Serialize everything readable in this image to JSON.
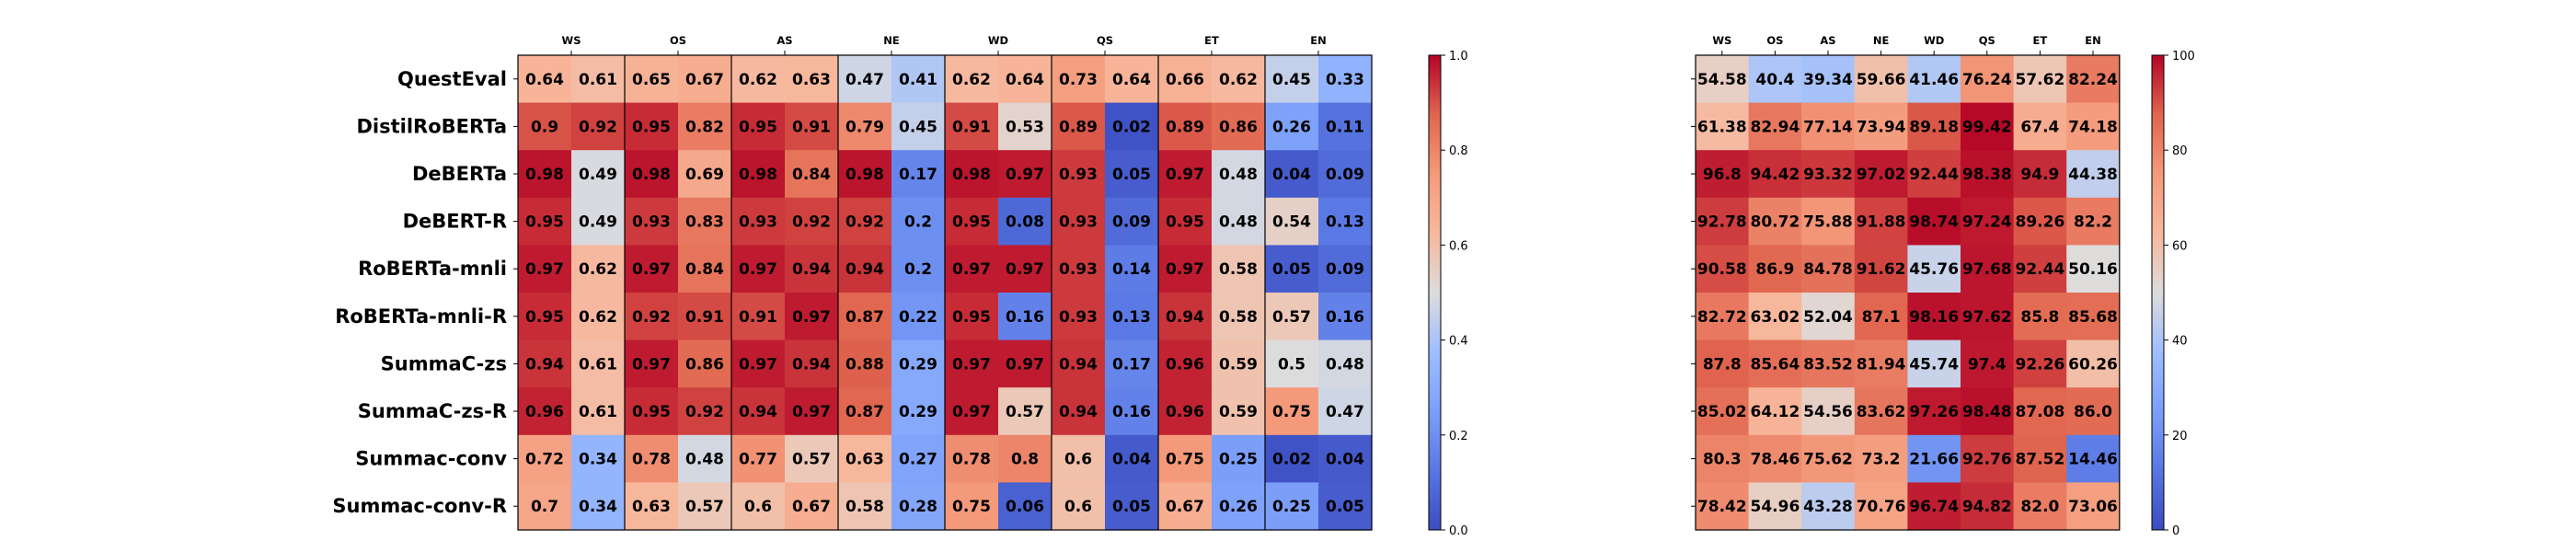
{
  "chart_data": [
    {
      "type": "heatmap",
      "colormap": "coolwarm",
      "vmin": 0.0,
      "vmax": 1.0,
      "colorbar_ticks": [
        "0.0",
        "0.2",
        "0.4",
        "0.6",
        "0.8",
        "1.0"
      ],
      "column_groups": [
        "WS",
        "OS",
        "AS",
        "NE",
        "WD",
        "QS",
        "ET",
        "EN"
      ],
      "rows": [
        "QuestEval",
        "DistilRoBERTa",
        "DeBERTa",
        "DeBERT-R",
        "RoBERTa-mnli",
        "RoBERTa-mnli-R",
        "SummaC-zs",
        "SummaC-zs-R",
        "Summac-conv",
        "Summac-conv-R"
      ],
      "values": [
        [
          0.64,
          0.61,
          0.65,
          0.67,
          0.62,
          0.63,
          0.47,
          0.41,
          0.62,
          0.64,
          0.73,
          0.64,
          0.66,
          0.62,
          0.45,
          0.33
        ],
        [
          0.9,
          0.92,
          0.95,
          0.82,
          0.95,
          0.91,
          0.79,
          0.45,
          0.91,
          0.53,
          0.89,
          0.02,
          0.89,
          0.86,
          0.26,
          0.11
        ],
        [
          0.98,
          0.49,
          0.98,
          0.69,
          0.98,
          0.84,
          0.98,
          0.17,
          0.98,
          0.97,
          0.93,
          0.05,
          0.97,
          0.48,
          0.04,
          0.09
        ],
        [
          0.95,
          0.49,
          0.93,
          0.83,
          0.93,
          0.92,
          0.92,
          0.2,
          0.95,
          0.08,
          0.93,
          0.09,
          0.95,
          0.48,
          0.54,
          0.13
        ],
        [
          0.97,
          0.62,
          0.97,
          0.84,
          0.97,
          0.94,
          0.94,
          0.2,
          0.97,
          0.97,
          0.93,
          0.14,
          0.97,
          0.58,
          0.05,
          0.09
        ],
        [
          0.95,
          0.62,
          0.92,
          0.91,
          0.91,
          0.97,
          0.87,
          0.22,
          0.95,
          0.16,
          0.93,
          0.13,
          0.94,
          0.58,
          0.57,
          0.16
        ],
        [
          0.94,
          0.61,
          0.97,
          0.86,
          0.97,
          0.94,
          0.88,
          0.29,
          0.97,
          0.97,
          0.94,
          0.17,
          0.96,
          0.59,
          0.5,
          0.48
        ],
        [
          0.96,
          0.61,
          0.95,
          0.92,
          0.94,
          0.97,
          0.87,
          0.29,
          0.97,
          0.57,
          0.94,
          0.16,
          0.96,
          0.59,
          0.75,
          0.47
        ],
        [
          0.72,
          0.34,
          0.78,
          0.48,
          0.77,
          0.57,
          0.63,
          0.27,
          0.78,
          0.8,
          0.6,
          0.04,
          0.75,
          0.25,
          0.02,
          0.04
        ],
        [
          0.7,
          0.34,
          0.63,
          0.57,
          0.6,
          0.67,
          0.58,
          0.28,
          0.75,
          0.06,
          0.6,
          0.05,
          0.67,
          0.26,
          0.25,
          0.05
        ]
      ]
    },
    {
      "type": "heatmap",
      "colormap": "coolwarm",
      "vmin": 0,
      "vmax": 100,
      "colorbar_ticks": [
        "0",
        "20",
        "40",
        "60",
        "80",
        "100"
      ],
      "columns": [
        "WS",
        "OS",
        "AS",
        "NE",
        "WD",
        "QS",
        "ET",
        "EN"
      ],
      "values": [
        [
          "54.58",
          "40.4",
          "39.34",
          "59.66",
          "41.46",
          "76.24",
          "57.62",
          "82.24"
        ],
        [
          "61.38",
          "82.94",
          "77.14",
          "73.94",
          "89.18",
          "99.42",
          "67.4",
          "74.18"
        ],
        [
          "96.8",
          "94.42",
          "93.32",
          "97.02",
          "92.44",
          "98.38",
          "94.9",
          "44.38"
        ],
        [
          "92.78",
          "80.72",
          "75.88",
          "91.88",
          "98.74",
          "97.24",
          "89.26",
          "82.2"
        ],
        [
          "90.58",
          "86.9",
          "84.78",
          "91.62",
          "45.76",
          "97.68",
          "92.44",
          "50.16"
        ],
        [
          "82.72",
          "63.02",
          "52.04",
          "87.1",
          "98.16",
          "97.62",
          "85.8",
          "85.68"
        ],
        [
          "87.8",
          "85.64",
          "83.52",
          "81.94",
          "45.74",
          "97.4",
          "92.26",
          "60.26"
        ],
        [
          "85.02",
          "64.12",
          "54.56",
          "83.62",
          "97.26",
          "98.48",
          "87.08",
          "86.0"
        ],
        [
          "80.3",
          "78.46",
          "75.62",
          "73.2",
          "21.66",
          "92.76",
          "87.52",
          "14.46"
        ],
        [
          "78.42",
          "54.96",
          "43.28",
          "70.76",
          "96.74",
          "94.82",
          "82.0",
          "73.06"
        ]
      ]
    }
  ]
}
